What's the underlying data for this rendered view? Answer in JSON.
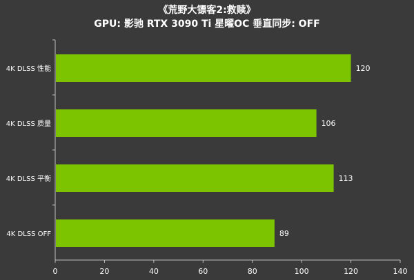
{
  "chart_data": {
    "type": "bar",
    "orientation": "horizontal",
    "title": "《荒野大镖客2:救赎》",
    "subtitle": "GPU: 影驰 RTX 3090 Ti 星曜OC  垂直同步: OFF",
    "categories": [
      "4K DLSS 性能",
      "4K DLSS 质量",
      "4K DLSS 平衡",
      "4K DLSS OFF"
    ],
    "values": [
      120,
      106,
      113,
      89
    ],
    "xlim": [
      0,
      140
    ],
    "xticks": [
      0,
      20,
      40,
      60,
      80,
      100,
      120,
      140
    ],
    "bar_color": "#7dc400",
    "background": "#3a3a3a",
    "grid": false
  }
}
